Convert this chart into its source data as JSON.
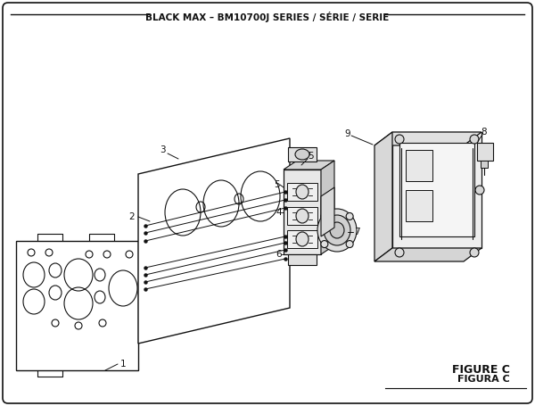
{
  "title": "BLACK MAX – BM10700J SERIES / SÉRIE / SERIE",
  "figure_c": "FIGURE C",
  "figura_c": "FIGURA C",
  "bg_color": "#ffffff"
}
